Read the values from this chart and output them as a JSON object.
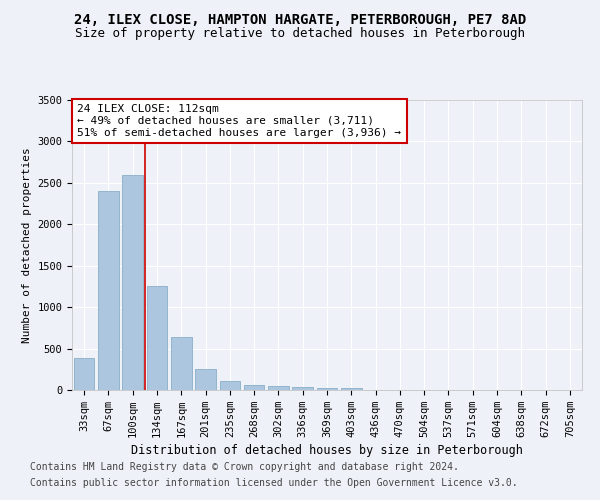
{
  "title1": "24, ILEX CLOSE, HAMPTON HARGATE, PETERBOROUGH, PE7 8AD",
  "title2": "Size of property relative to detached houses in Peterborough",
  "xlabel": "Distribution of detached houses by size in Peterborough",
  "ylabel": "Number of detached properties",
  "categories": [
    "33sqm",
    "67sqm",
    "100sqm",
    "134sqm",
    "167sqm",
    "201sqm",
    "235sqm",
    "268sqm",
    "302sqm",
    "336sqm",
    "369sqm",
    "403sqm",
    "436sqm",
    "470sqm",
    "504sqm",
    "537sqm",
    "571sqm",
    "604sqm",
    "638sqm",
    "672sqm",
    "705sqm"
  ],
  "values": [
    390,
    2400,
    2600,
    1250,
    640,
    250,
    110,
    60,
    45,
    35,
    25,
    30,
    0,
    0,
    0,
    0,
    0,
    0,
    0,
    0,
    0
  ],
  "bar_color": "#adc6e0",
  "bar_edge_color": "#8aafc8",
  "annotation_text": "24 ILEX CLOSE: 112sqm\n← 49% of detached houses are smaller (3,711)\n51% of semi-detached houses are larger (3,936) →",
  "annotation_box_color": "#ffffff",
  "annotation_box_edge_color": "#cc0000",
  "ylim": [
    0,
    3500
  ],
  "yticks": [
    0,
    500,
    1000,
    1500,
    2000,
    2500,
    3000,
    3500
  ],
  "footer1": "Contains HM Land Registry data © Crown copyright and database right 2024.",
  "footer2": "Contains public sector information licensed under the Open Government Licence v3.0.",
  "bg_color": "#eef2f8",
  "grid_color": "#ffffff",
  "title1_fontsize": 10,
  "title2_fontsize": 9,
  "xlabel_fontsize": 8.5,
  "ylabel_fontsize": 8,
  "tick_fontsize": 7.5,
  "footer_fontsize": 7,
  "annotation_fontsize": 8,
  "red_line_color": "#cc0000",
  "red_line_x": 2.5
}
